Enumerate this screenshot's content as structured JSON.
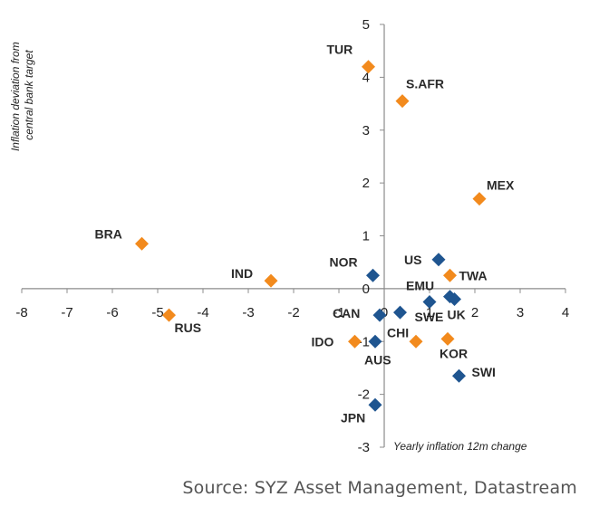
{
  "chart_data": {
    "type": "scatter",
    "title": "",
    "xlabel": "Yearly inflation 12m change",
    "ylabel_lines": [
      "Inflation deviation from",
      "central bank target"
    ],
    "xlim": [
      -8,
      4
    ],
    "ylim": [
      -3,
      5
    ],
    "xticks": [
      -8,
      -7,
      -6,
      -5,
      -4,
      -3,
      -2,
      -1,
      0,
      1,
      2,
      3,
      4
    ],
    "yticks": [
      -3,
      -2,
      -1,
      0,
      1,
      2,
      3,
      4,
      5
    ],
    "series": [
      {
        "name": "orange",
        "color": "#F28A1D",
        "points": [
          {
            "label": "TUR",
            "x": -0.35,
            "y": 4.2
          },
          {
            "label": "S.AFR",
            "x": 0.4,
            "y": 3.55
          },
          {
            "label": "MEX",
            "x": 2.1,
            "y": 1.7
          },
          {
            "label": "BRA",
            "x": -5.35,
            "y": 0.85
          },
          {
            "label": "IND",
            "x": -2.5,
            "y": 0.15
          },
          {
            "label": "RUS",
            "x": -4.75,
            "y": -0.5
          },
          {
            "label": "TWA",
            "x": 1.45,
            "y": 0.25
          },
          {
            "label": "IDO",
            "x": -0.65,
            "y": -1.0
          },
          {
            "label": "CHI",
            "x": 0.7,
            "y": -1.0
          },
          {
            "label": "KOR",
            "x": 1.4,
            "y": -0.95
          }
        ]
      },
      {
        "name": "blue",
        "color": "#1F5590",
        "points": [
          {
            "label": "US",
            "x": 1.2,
            "y": 0.55
          },
          {
            "label": "NOR",
            "x": -0.25,
            "y": 0.25
          },
          {
            "label": "EMU",
            "x": 1.0,
            "y": -0.25
          },
          {
            "label": "UK",
            "x": 1.55,
            "y": -0.2
          },
          {
            "label": "",
            "x": 1.45,
            "y": -0.15
          },
          {
            "label": "CAN",
            "x": -0.1,
            "y": -0.5
          },
          {
            "label": "SWE",
            "x": 0.35,
            "y": -0.45
          },
          {
            "label": "AUS",
            "x": -0.2,
            "y": -1.0
          },
          {
            "label": "SWI",
            "x": 1.65,
            "y": -1.65
          },
          {
            "label": "JPN",
            "x": -0.2,
            "y": -2.2
          }
        ]
      }
    ]
  },
  "source_text": "Source: SYZ Asset Management, Datastream"
}
